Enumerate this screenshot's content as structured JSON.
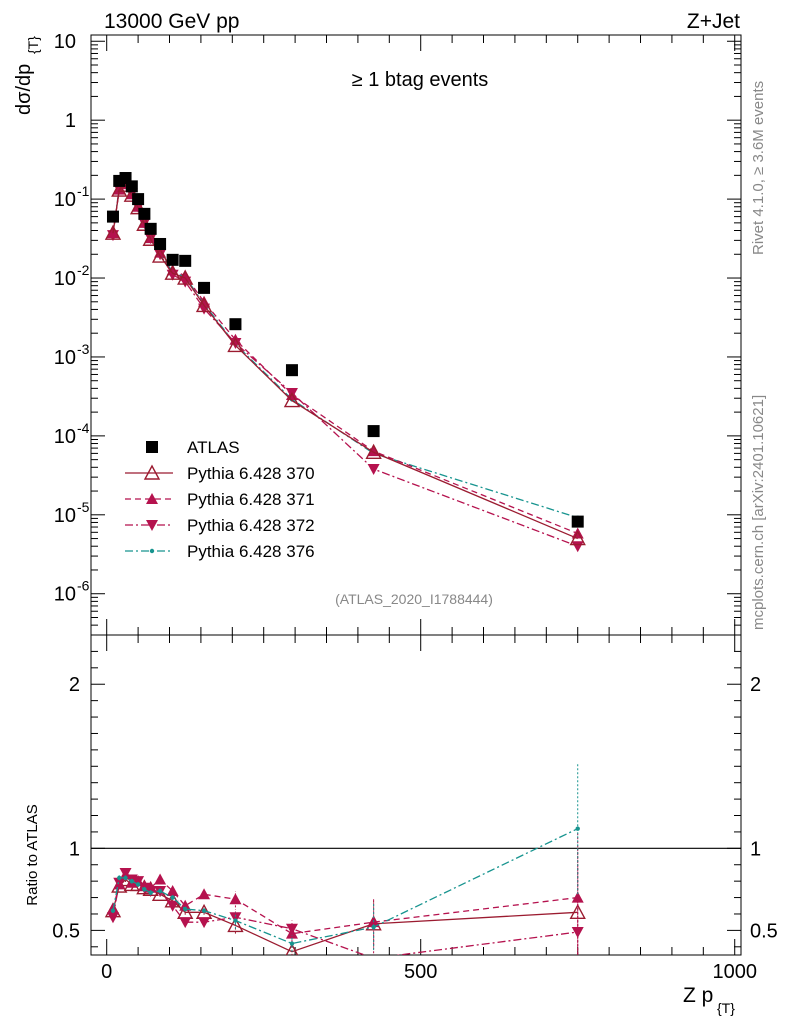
{
  "header": {
    "left": "13000 GeV pp",
    "right": "Z+Jet"
  },
  "side_text": {
    "rivet": "Rivet 4.1.0, ≥ 3.6M events",
    "mcplots": "mcplots.cern.ch [arXiv:2401.10621]"
  },
  "chart_data": [
    {
      "type": "scatter",
      "panel": "main",
      "title": "≥ 1 btag events",
      "watermark": "(ATLAS_2020_I1788444)",
      "ylabel": "dσ/dp_{T}",
      "yscale": "log",
      "ylim": [
        3e-07,
        12
      ],
      "xlim": [
        -25,
        1010
      ],
      "y_ticks": [
        {
          "v": 10,
          "t": "10"
        },
        {
          "v": 1,
          "t": "1"
        },
        {
          "v": 0.1,
          "t": "10"
        },
        {
          "v": 0.01,
          "t": "10"
        },
        {
          "v": 0.001,
          "t": "10"
        },
        {
          "v": 0.0001,
          "t": "10"
        },
        {
          "v": 1e-05,
          "t": "10"
        },
        {
          "v": 1e-06,
          "t": "10"
        }
      ],
      "y_tick_exponents": [
        "",
        "",
        "-1",
        "-2",
        "-3",
        "-4",
        "-5",
        "-6"
      ],
      "x": [
        10,
        20,
        30,
        40,
        50,
        60,
        70,
        85,
        105,
        125,
        155,
        205,
        295,
        425,
        750
      ],
      "series": [
        {
          "name": "ATLAS",
          "color": "#000000",
          "marker": "square",
          "line": "none",
          "values": [
            0.06,
            0.17,
            0.185,
            0.145,
            0.1,
            0.065,
            0.042,
            0.027,
            0.017,
            0.0165,
            0.0075,
            0.0026,
            0.00068,
            0.000115,
            8.2e-06
          ]
        },
        {
          "name": "Pythia 6.428 370",
          "color": "#9b1b30",
          "marker": "open-triangle",
          "line": "solid",
          "values": [
            0.037,
            0.13,
            0.15,
            0.112,
            0.078,
            0.048,
            0.031,
            0.019,
            0.0115,
            0.01,
            0.0045,
            0.0014,
            0.00028,
            6.2e-05,
            5e-06
          ]
        },
        {
          "name": "Pythia 6.428 371",
          "color": "#b5124e",
          "marker": "triangle",
          "line": "dashed",
          "values": [
            0.037,
            0.132,
            0.155,
            0.115,
            0.08,
            0.05,
            0.032,
            0.021,
            0.0125,
            0.0107,
            0.005,
            0.00165,
            0.00033,
            6.4e-05,
            5.8e-06
          ]
        },
        {
          "name": "Pythia 6.428 372",
          "color": "#b5124e",
          "marker": "down-triangle",
          "line": "dashdot",
          "values": [
            0.035,
            0.135,
            0.158,
            0.118,
            0.08,
            0.05,
            0.032,
            0.02,
            0.011,
            0.009,
            0.0041,
            0.0015,
            0.00035,
            3.8e-05,
            4e-06
          ]
        },
        {
          "name": "Pythia 6.428 376",
          "color": "#17948f",
          "marker": "dot",
          "line": "dashdot",
          "values": [
            0.037,
            0.14,
            0.152,
            0.116,
            0.078,
            0.049,
            0.031,
            0.02,
            0.012,
            0.0103,
            0.0047,
            0.00145,
            0.00029,
            6e-05,
            9.2e-06
          ]
        }
      ]
    },
    {
      "type": "line",
      "panel": "ratio",
      "ylabel": "Ratio to ATLAS",
      "xlabel": "Z p_{T}",
      "ylim": [
        0.35,
        2.3
      ],
      "xlim": [
        -25,
        1010
      ],
      "y_ticks": [
        "0.5",
        "1",
        "2"
      ],
      "x_ticks": [
        "0",
        "500",
        "1000"
      ],
      "x": [
        10,
        20,
        30,
        40,
        50,
        60,
        70,
        85,
        105,
        125,
        155,
        205,
        295,
        425,
        750
      ],
      "series": [
        {
          "name": "Pythia 6.428 370",
          "values": [
            0.62,
            0.77,
            0.81,
            0.78,
            0.78,
            0.76,
            0.75,
            0.72,
            0.68,
            0.61,
            0.61,
            0.53,
            0.37,
            0.54,
            0.61
          ]
        },
        {
          "name": "Pythia 6.428 371",
          "values": [
            0.63,
            0.78,
            0.84,
            0.79,
            0.8,
            0.77,
            0.76,
            0.81,
            0.74,
            0.65,
            0.72,
            0.69,
            0.48,
            0.55,
            0.7
          ]
        },
        {
          "name": "Pythia 6.428 372",
          "values": [
            0.58,
            0.79,
            0.85,
            0.81,
            0.8,
            0.76,
            0.74,
            0.74,
            0.65,
            0.55,
            0.55,
            0.58,
            0.51,
            0.33,
            0.49
          ]
        },
        {
          "name": "Pythia 6.428 376",
          "values": [
            0.62,
            0.82,
            0.82,
            0.8,
            0.78,
            0.75,
            0.73,
            0.74,
            0.7,
            0.63,
            0.62,
            0.56,
            0.42,
            0.52,
            1.12
          ]
        }
      ]
    }
  ]
}
